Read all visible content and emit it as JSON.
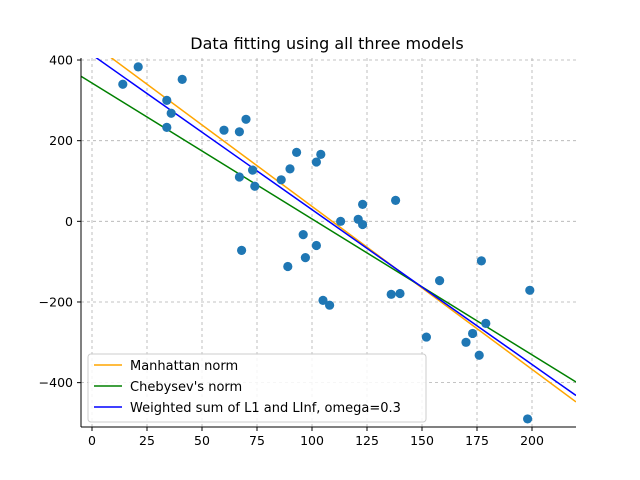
{
  "chart_data": {
    "type": "scatter",
    "title": "Data fitting using all three models",
    "xlabel": "",
    "ylabel": "",
    "xlim": [
      -5,
      220
    ],
    "ylim": [
      -510,
      405
    ],
    "xticks": [
      0,
      25,
      50,
      75,
      100,
      125,
      150,
      175,
      200
    ],
    "yticks": [
      -400,
      -200,
      0,
      200,
      400
    ],
    "grid": true,
    "legend_position": "lower left",
    "point_color": "#1f77b4",
    "points": [
      {
        "x": 14,
        "y": 340
      },
      {
        "x": 21,
        "y": 383
      },
      {
        "x": 34,
        "y": 300
      },
      {
        "x": 34,
        "y": 233
      },
      {
        "x": 36,
        "y": 268
      },
      {
        "x": 41,
        "y": 352
      },
      {
        "x": 60,
        "y": 226
      },
      {
        "x": 67,
        "y": 110
      },
      {
        "x": 67,
        "y": 222
      },
      {
        "x": 68,
        "y": -72
      },
      {
        "x": 70,
        "y": 253
      },
      {
        "x": 73,
        "y": 127
      },
      {
        "x": 74,
        "y": 87
      },
      {
        "x": 86,
        "y": 103
      },
      {
        "x": 89,
        "y": -112
      },
      {
        "x": 90,
        "y": 130
      },
      {
        "x": 93,
        "y": 171
      },
      {
        "x": 96,
        "y": -33
      },
      {
        "x": 97,
        "y": -90
      },
      {
        "x": 102,
        "y": 147
      },
      {
        "x": 102,
        "y": -60
      },
      {
        "x": 104,
        "y": 166
      },
      {
        "x": 105,
        "y": -196
      },
      {
        "x": 108,
        "y": -208
      },
      {
        "x": 113,
        "y": 0
      },
      {
        "x": 121,
        "y": 5
      },
      {
        "x": 123,
        "y": 42
      },
      {
        "x": 123,
        "y": -8
      },
      {
        "x": 136,
        "y": -181
      },
      {
        "x": 138,
        "y": 52
      },
      {
        "x": 140,
        "y": -179
      },
      {
        "x": 152,
        "y": -287
      },
      {
        "x": 158,
        "y": -147
      },
      {
        "x": 170,
        "y": -300
      },
      {
        "x": 173,
        "y": -278
      },
      {
        "x": 176,
        "y": -332
      },
      {
        "x": 177,
        "y": -98
      },
      {
        "x": 179,
        "y": -253
      },
      {
        "x": 198,
        "y": -490
      },
      {
        "x": 199,
        "y": -171
      }
    ],
    "series": [
      {
        "name": "Manhattan norm",
        "color": "#ffa500",
        "slope": -4.04,
        "intercept": 441
      },
      {
        "name": "Chebysev's norm",
        "color": "#008000",
        "slope": -3.37,
        "intercept": 343
      },
      {
        "name": "Weighted sum of L1 and LInf, omega=0.3",
        "color": "#0000ff",
        "slope": -3.84,
        "intercercept_unused": null,
        "intercept": 413
      }
    ]
  }
}
